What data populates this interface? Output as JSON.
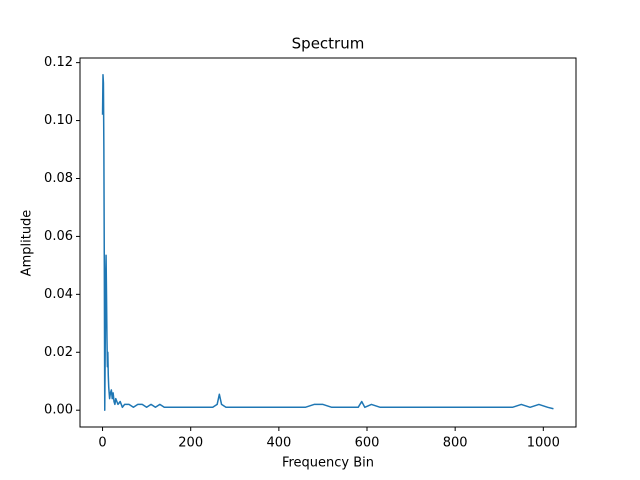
{
  "chart_data": {
    "type": "line",
    "title": "Spectrum",
    "x_label": "Frequency Bin",
    "y_label": "Amplitude",
    "x": [
      0,
      1,
      2,
      3,
      4,
      5,
      6,
      7,
      8,
      9,
      10,
      11,
      12,
      13,
      14,
      16,
      18,
      20,
      22,
      24,
      26,
      28,
      30,
      35,
      40,
      45,
      50,
      60,
      70,
      80,
      90,
      100,
      110,
      120,
      130,
      140,
      150,
      170,
      190,
      210,
      230,
      250,
      260,
      265,
      270,
      280,
      300,
      320,
      340,
      360,
      380,
      400,
      420,
      440,
      460,
      480,
      500,
      520,
      540,
      560,
      580,
      588,
      595,
      610,
      630,
      650,
      670,
      690,
      710,
      730,
      750,
      770,
      790,
      810,
      830,
      850,
      870,
      890,
      910,
      930,
      950,
      970,
      990,
      1010,
      1023
    ],
    "series": [
      {
        "name": "Spectrum",
        "color": "#1f77b4",
        "values": [
          0.102,
          0.1158,
          0.113,
          0.09,
          0.05,
          0.0,
          0.02,
          0.045,
          0.0535,
          0.04,
          0.025,
          0.015,
          0.02,
          0.012,
          0.008,
          0.004,
          0.006,
          0.007,
          0.004,
          0.006,
          0.003,
          0.002,
          0.004,
          0.002,
          0.003,
          0.001,
          0.002,
          0.002,
          0.001,
          0.002,
          0.002,
          0.001,
          0.002,
          0.001,
          0.002,
          0.001,
          0.001,
          0.001,
          0.001,
          0.001,
          0.001,
          0.001,
          0.002,
          0.0055,
          0.002,
          0.001,
          0.001,
          0.001,
          0.001,
          0.001,
          0.001,
          0.001,
          0.001,
          0.001,
          0.001,
          0.002,
          0.002,
          0.001,
          0.001,
          0.001,
          0.001,
          0.003,
          0.001,
          0.002,
          0.001,
          0.001,
          0.001,
          0.001,
          0.001,
          0.001,
          0.001,
          0.001,
          0.001,
          0.001,
          0.001,
          0.001,
          0.001,
          0.001,
          0.001,
          0.001,
          0.002,
          0.001,
          0.002,
          0.001,
          0.0005
        ]
      }
    ],
    "xlim": [
      -51.15,
      1074.15
    ],
    "xticks": [
      0,
      200,
      400,
      600,
      800,
      1000
    ],
    "ylim": [
      -0.0058,
      0.1216
    ],
    "yticks": [
      {
        "value": 0,
        "label": "0.00"
      },
      {
        "value": 0.02,
        "label": "0.02"
      },
      {
        "value": 0.04,
        "label": "0.04"
      },
      {
        "value": 0.06,
        "label": "0.06"
      },
      {
        "value": 0.08,
        "label": "0.08"
      },
      {
        "value": 0.1,
        "label": "0.10"
      },
      {
        "value": 0.12,
        "label": "0.12"
      }
    ],
    "grid": false
  }
}
